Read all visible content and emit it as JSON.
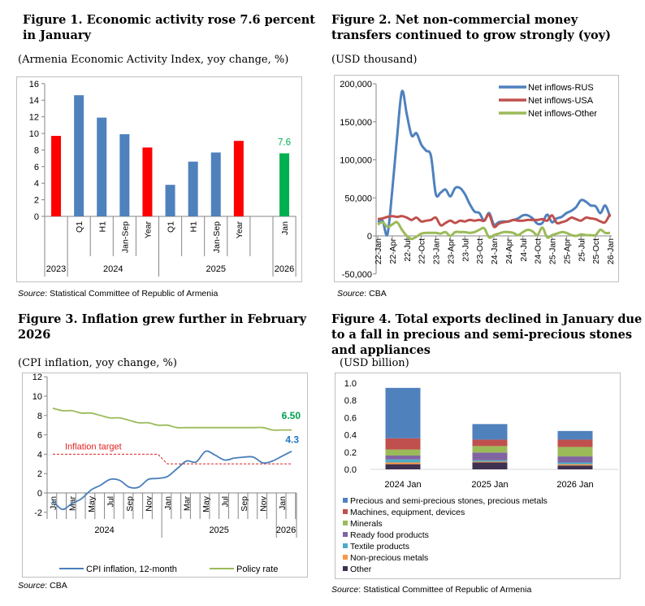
{
  "colors": {
    "blue": "#4f81bd",
    "red": "#ff0000",
    "green": "#00b050",
    "usa": "#c0504d",
    "other": "#9bbb59",
    "target": "#e02020",
    "policy_label": "#00a050",
    "cpi_label": "#1f77c4"
  },
  "source_label": "Source",
  "fig1": {
    "title": "Figure 1. Economic activity rose 7.6 percent in January",
    "subtitle": "(Armenia Economic Activity Index, yoy change, %)",
    "source": ": Statistical Committee of Republic of Armenia"
  },
  "fig2": {
    "title": "Figure 2.  Net non-commercial money transfers continued to grow strongly (yoy)",
    "subtitle": "(USD thousand)",
    "source": ": CBA"
  },
  "fig3": {
    "title": "Figure 3. Inflation grew further in February 2026",
    "subtitle": "(CPI inflation, yoy change, %)",
    "source": ": CBA"
  },
  "fig4": {
    "title": "Figure 4. Total exports declined in January due to a fall in precious and semi-precious stones and appliances",
    "subtitle": "(USD billion)",
    "source": ": Statistical Committee of Republic of Armenia"
  },
  "chart_data": [
    {
      "type": "bar",
      "categories": [
        "",
        "Q1",
        "H1",
        "Jan-Sep",
        "Year",
        "Q1",
        "H1",
        "Jan-Sep",
        "Year",
        "",
        "Jan"
      ],
      "groups": [
        {
          "label": "2023",
          "span": 1
        },
        {
          "label": "2024",
          "span": 4
        },
        {
          "label": "2025",
          "span": 5
        },
        {
          "label": "2026",
          "span": 1
        }
      ],
      "values": [
        9.7,
        14.6,
        11.9,
        9.9,
        8.3,
        3.8,
        6.6,
        7.7,
        9.1,
        null,
        7.6
      ],
      "bar_colors": [
        "red",
        "blue",
        "blue",
        "blue",
        "red",
        "blue",
        "blue",
        "blue",
        "red",
        null,
        "green"
      ],
      "data_labels": {
        "10": "7.6"
      },
      "ylim": [
        0,
        16
      ],
      "yticks": [
        0,
        2,
        4,
        6,
        8,
        10,
        12,
        14,
        16
      ],
      "grid": false
    },
    {
      "type": "line",
      "x_start": "22-Jan",
      "x_end": "26-Jan",
      "frequency": "monthly",
      "xticks": [
        "22-Jan",
        "22-Apr",
        "22-Jul",
        "22-Oct",
        "23-Jan",
        "23-Apr",
        "23-Jul",
        "23-Oct",
        "24-Jan",
        "24-Apr",
        "24-Jul",
        "24-Oct",
        "25-Jan",
        "25-Apr",
        "25-Jul",
        "25-Oct",
        "26-Jan"
      ],
      "ylim": [
        -50000,
        200000
      ],
      "yticks": [
        "-50,000",
        "0",
        "50,000",
        "100,000",
        "150,000",
        "200,000"
      ],
      "legend": "top-right",
      "grid": false,
      "series": [
        {
          "name": "Net inflows-RUS",
          "color": "blue",
          "values": [
            18000,
            20000,
            2000,
            60000,
            130000,
            190000,
            160000,
            132000,
            135000,
            120000,
            112000,
            105000,
            55000,
            57000,
            61000,
            52000,
            63000,
            63000,
            55000,
            42000,
            32000,
            30000,
            20000,
            30000,
            15000,
            18000,
            19000,
            19000,
            21000,
            23000,
            27000,
            27000,
            23000,
            16000,
            17000,
            28000,
            18000,
            23000,
            25000,
            30000,
            33000,
            38000,
            47000,
            45000,
            40000,
            39000,
            30000,
            40000,
            25000
          ]
        },
        {
          "name": "Net inflows-USA",
          "color": "usa",
          "values": [
            22000,
            23000,
            25000,
            26000,
            25000,
            26000,
            24000,
            21000,
            24000,
            19000,
            20000,
            21000,
            24000,
            14000,
            17000,
            20000,
            17000,
            20000,
            19000,
            21000,
            20000,
            21000,
            20000,
            28000,
            12000,
            16000,
            18000,
            19000,
            21000,
            20000,
            20000,
            21000,
            21000,
            21000,
            22000,
            20000,
            27000,
            17000,
            18000,
            20000,
            24000,
            22000,
            20000,
            24000,
            23000,
            22000,
            19000,
            18000,
            29000
          ]
        },
        {
          "name": "Net inflows-Other",
          "color": "other",
          "values": [
            15000,
            18000,
            12000,
            15000,
            18000,
            8000,
            0,
            -4000,
            -1000,
            3000,
            4000,
            4000,
            4000,
            3000,
            5000,
            0,
            5000,
            5000,
            5000,
            4000,
            5000,
            8000,
            10000,
            -2000,
            1000,
            3000,
            5000,
            5000,
            4000,
            1000,
            5000,
            8000,
            6000,
            1000,
            11000,
            -2000,
            1000,
            3000,
            5000,
            4000,
            1000,
            0,
            2000,
            1000,
            1000,
            1000,
            8000,
            4000,
            4000
          ]
        }
      ]
    },
    {
      "type": "line",
      "x_start": "2024-Jan",
      "x_end": "2026-Feb",
      "frequency": "monthly",
      "xticks": [
        "Jan",
        "Mar",
        "May",
        "Jul",
        "Sep",
        "Nov",
        "Jan",
        "Mar",
        "May",
        "Jul",
        "Sep",
        "Nov",
        "Jan"
      ],
      "groups": [
        {
          "label": "2024",
          "span": 12
        },
        {
          "label": "2025",
          "span": 12
        },
        {
          "label": "2026",
          "span": 2
        }
      ],
      "ylim": [
        -2,
        12
      ],
      "yticks": [
        -2,
        0,
        2,
        4,
        6,
        8,
        10,
        12
      ],
      "legend": "bottom",
      "grid": false,
      "series": [
        {
          "name": "CPI inflation, 12-month",
          "color": "blue",
          "values": [
            -0.8,
            -1.7,
            -1.1,
            -0.6,
            0.3,
            0.8,
            1.4,
            1.3,
            0.6,
            0.6,
            1.4,
            1.5,
            1.7,
            2.5,
            3.3,
            3.2,
            4.3,
            3.9,
            3.4,
            3.6,
            3.7,
            3.7,
            3.1,
            3.3,
            3.8,
            4.3
          ],
          "end_label": "4.3"
        },
        {
          "name": "Policy rate",
          "color": "other",
          "values": [
            8.75,
            8.5,
            8.5,
            8.25,
            8.25,
            8.0,
            7.75,
            7.75,
            7.5,
            7.25,
            7.25,
            7.0,
            7.0,
            6.75,
            6.75,
            6.75,
            6.75,
            6.75,
            6.75,
            6.75,
            6.75,
            6.75,
            6.75,
            6.5,
            6.5,
            6.5
          ],
          "end_label": "6.50"
        },
        {
          "label": "Inflation target",
          "color": "target",
          "dashed": true,
          "values": [
            4,
            4,
            4,
            4,
            4,
            4,
            4,
            4,
            4,
            4,
            4,
            4,
            3,
            3,
            3,
            3,
            3,
            3,
            3,
            3,
            3,
            3,
            3,
            3,
            3,
            3
          ]
        }
      ]
    },
    {
      "type": "bar",
      "stacked": true,
      "categories": [
        "2024 Jan",
        "2025 Jan",
        "2026 Jan"
      ],
      "ylim": [
        0,
        1.0
      ],
      "yticks": [
        "0.0",
        "0.2",
        "0.4",
        "0.6",
        "0.8",
        "1.0"
      ],
      "legend": "bottom",
      "grid": false,
      "series": [
        {
          "name": "Other",
          "color": "#3f3151",
          "values": [
            0.06,
            0.08,
            0.045
          ]
        },
        {
          "name": "Non-precious metals",
          "color": "#f79646",
          "values": [
            0.02,
            0.01,
            0.015
          ]
        },
        {
          "name": "Textile products",
          "color": "#4bacc6",
          "values": [
            0.035,
            0.015,
            0.02
          ]
        },
        {
          "name": "Ready food products",
          "color": "#8064a2",
          "values": [
            0.045,
            0.09,
            0.07
          ]
        },
        {
          "name": "Minerals",
          "color": "#9bbb59",
          "values": [
            0.07,
            0.075,
            0.11
          ]
        },
        {
          "name": "Machines, equipment, devices",
          "color": "#c0504d",
          "values": [
            0.13,
            0.075,
            0.085
          ]
        },
        {
          "name": "Precious and semi-precious stones, precious metals",
          "color": "#4f81bd",
          "values": [
            0.585,
            0.18,
            0.1
          ]
        }
      ]
    }
  ]
}
